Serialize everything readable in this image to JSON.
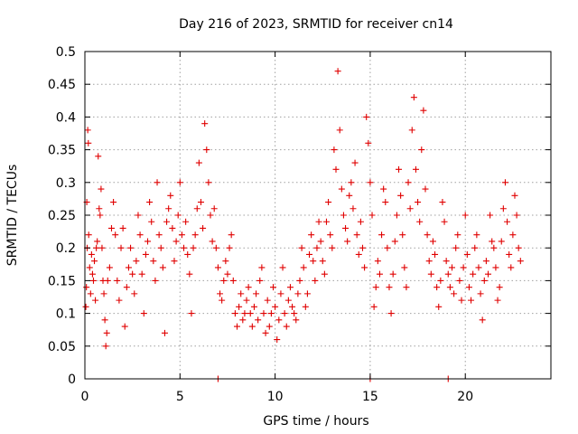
{
  "chart_data": {
    "type": "scatter",
    "title": "Day 216 of 2023, SRMTID for receiver cn14",
    "xlabel": "GPS time / hours",
    "ylabel": "SRMTID / TECUs",
    "xlim": [
      0,
      24.5
    ],
    "ylim": [
      0,
      0.5
    ],
    "xticks": [
      0,
      5,
      10,
      15,
      20
    ],
    "xtick_labels": [
      "0",
      "5",
      "10",
      "15",
      "20"
    ],
    "yticks": [
      0,
      0.05,
      0.1,
      0.15,
      0.2,
      0.25,
      0.3,
      0.35,
      0.4,
      0.45,
      0.5
    ],
    "ytick_labels": [
      "0",
      "0.05",
      "0.1",
      "0.15",
      "0.2",
      "0.25",
      "0.3",
      "0.35",
      "0.4",
      "0.45",
      "0.5"
    ],
    "grid": true,
    "marker": "+",
    "color": "#e00000",
    "series": [
      {
        "name": "SRMTID",
        "points": [
          [
            0.05,
            0.11
          ],
          [
            0.08,
            0.14
          ],
          [
            0.1,
            0.27
          ],
          [
            0.12,
            0.2
          ],
          [
            0.15,
            0.38
          ],
          [
            0.18,
            0.36
          ],
          [
            0.2,
            0.22
          ],
          [
            0.25,
            0.17
          ],
          [
            0.3,
            0.13
          ],
          [
            0.35,
            0.19
          ],
          [
            0.4,
            0.16
          ],
          [
            0.45,
            0.15
          ],
          [
            0.5,
            0.18
          ],
          [
            0.55,
            0.12
          ],
          [
            0.6,
            0.2
          ],
          [
            0.65,
            0.21
          ],
          [
            0.7,
            0.34
          ],
          [
            0.75,
            0.26
          ],
          [
            0.8,
            0.25
          ],
          [
            0.85,
            0.29
          ],
          [
            0.9,
            0.2
          ],
          [
            0.95,
            0.15
          ],
          [
            1.0,
            0.13
          ],
          [
            1.05,
            0.09
          ],
          [
            1.1,
            0.05
          ],
          [
            1.15,
            0.07
          ],
          [
            1.2,
            0.15
          ],
          [
            1.3,
            0.17
          ],
          [
            1.4,
            0.23
          ],
          [
            1.5,
            0.27
          ],
          [
            1.6,
            0.22
          ],
          [
            1.7,
            0.15
          ],
          [
            1.8,
            0.12
          ],
          [
            1.9,
            0.2
          ],
          [
            2.0,
            0.23
          ],
          [
            2.1,
            0.08
          ],
          [
            2.2,
            0.14
          ],
          [
            2.3,
            0.17
          ],
          [
            2.4,
            0.2
          ],
          [
            2.5,
            0.16
          ],
          [
            2.6,
            0.13
          ],
          [
            2.7,
            0.18
          ],
          [
            2.8,
            0.25
          ],
          [
            2.9,
            0.22
          ],
          [
            3.0,
            0.16
          ],
          [
            3.1,
            0.1
          ],
          [
            3.2,
            0.19
          ],
          [
            3.3,
            0.21
          ],
          [
            3.4,
            0.27
          ],
          [
            3.5,
            0.24
          ],
          [
            3.6,
            0.18
          ],
          [
            3.7,
            0.15
          ],
          [
            3.8,
            0.3
          ],
          [
            3.9,
            0.22
          ],
          [
            4.0,
            0.2
          ],
          [
            4.1,
            0.17
          ],
          [
            4.2,
            0.07
          ],
          [
            4.3,
            0.24
          ],
          [
            4.4,
            0.26
          ],
          [
            4.5,
            0.28
          ],
          [
            4.6,
            0.23
          ],
          [
            4.7,
            0.18
          ],
          [
            4.8,
            0.21
          ],
          [
            4.9,
            0.25
          ],
          [
            5.0,
            0.3
          ],
          [
            5.1,
            0.22
          ],
          [
            5.2,
            0.2
          ],
          [
            5.3,
            0.24
          ],
          [
            5.4,
            0.19
          ],
          [
            5.5,
            0.16
          ],
          [
            5.6,
            0.1
          ],
          [
            5.7,
            0.2
          ],
          [
            5.8,
            0.22
          ],
          [
            5.9,
            0.26
          ],
          [
            6.0,
            0.33
          ],
          [
            6.1,
            0.27
          ],
          [
            6.2,
            0.23
          ],
          [
            6.3,
            0.39
          ],
          [
            6.4,
            0.35
          ],
          [
            6.5,
            0.3
          ],
          [
            6.6,
            0.25
          ],
          [
            6.7,
            0.21
          ],
          [
            6.8,
            0.26
          ],
          [
            6.9,
            0.2
          ],
          [
            7.0,
            0.17
          ],
          [
            7.1,
            0.13
          ],
          [
            7.2,
            0.12
          ],
          [
            7.3,
            0.15
          ],
          [
            7.4,
            0.18
          ],
          [
            7.5,
            0.16
          ],
          [
            7.6,
            0.2
          ],
          [
            7.7,
            0.22
          ],
          [
            7.8,
            0.15
          ],
          [
            7.9,
            0.1
          ],
          [
            8.0,
            0.08
          ],
          [
            8.1,
            0.11
          ],
          [
            8.2,
            0.13
          ],
          [
            8.3,
            0.09
          ],
          [
            8.4,
            0.1
          ],
          [
            8.5,
            0.12
          ],
          [
            8.6,
            0.14
          ],
          [
            8.7,
            0.1
          ],
          [
            8.8,
            0.08
          ],
          [
            8.9,
            0.11
          ],
          [
            9.0,
            0.13
          ],
          [
            9.1,
            0.09
          ],
          [
            9.2,
            0.15
          ],
          [
            9.3,
            0.17
          ],
          [
            9.4,
            0.1
          ],
          [
            9.5,
            0.07
          ],
          [
            9.6,
            0.12
          ],
          [
            9.7,
            0.08
          ],
          [
            9.8,
            0.1
          ],
          [
            9.9,
            0.14
          ],
          [
            10.0,
            0.11
          ],
          [
            10.1,
            0.06
          ],
          [
            10.2,
            0.09
          ],
          [
            10.3,
            0.13
          ],
          [
            10.4,
            0.17
          ],
          [
            10.5,
            0.1
          ],
          [
            10.6,
            0.08
          ],
          [
            10.7,
            0.12
          ],
          [
            10.8,
            0.14
          ],
          [
            10.9,
            0.11
          ],
          [
            11.0,
            0.1
          ],
          [
            11.1,
            0.09
          ],
          [
            11.2,
            0.13
          ],
          [
            11.3,
            0.15
          ],
          [
            11.4,
            0.2
          ],
          [
            11.5,
            0.17
          ],
          [
            11.6,
            0.11
          ],
          [
            11.7,
            0.13
          ],
          [
            11.8,
            0.19
          ],
          [
            11.9,
            0.22
          ],
          [
            12.0,
            0.18
          ],
          [
            12.1,
            0.15
          ],
          [
            12.2,
            0.2
          ],
          [
            12.3,
            0.24
          ],
          [
            12.4,
            0.21
          ],
          [
            12.5,
            0.18
          ],
          [
            12.6,
            0.16
          ],
          [
            12.7,
            0.24
          ],
          [
            12.8,
            0.27
          ],
          [
            12.9,
            0.22
          ],
          [
            13.0,
            0.2
          ],
          [
            13.1,
            0.35
          ],
          [
            13.2,
            0.32
          ],
          [
            13.3,
            0.47
          ],
          [
            13.4,
            0.38
          ],
          [
            13.5,
            0.29
          ],
          [
            13.6,
            0.25
          ],
          [
            13.7,
            0.23
          ],
          [
            13.8,
            0.21
          ],
          [
            13.9,
            0.28
          ],
          [
            14.0,
            0.3
          ],
          [
            14.1,
            0.26
          ],
          [
            14.2,
            0.33
          ],
          [
            14.3,
            0.22
          ],
          [
            14.4,
            0.19
          ],
          [
            14.5,
            0.24
          ],
          [
            14.6,
            0.2
          ],
          [
            14.7,
            0.17
          ],
          [
            14.8,
            0.4
          ],
          [
            14.9,
            0.36
          ],
          [
            15.0,
            0.3
          ],
          [
            15.1,
            0.25
          ],
          [
            15.2,
            0.11
          ],
          [
            15.3,
            0.14
          ],
          [
            15.4,
            0.18
          ],
          [
            15.5,
            0.16
          ],
          [
            15.6,
            0.22
          ],
          [
            15.7,
            0.29
          ],
          [
            15.8,
            0.27
          ],
          [
            15.9,
            0.2
          ],
          [
            16.0,
            0.14
          ],
          [
            16.1,
            0.1
          ],
          [
            16.2,
            0.16
          ],
          [
            16.3,
            0.21
          ],
          [
            16.4,
            0.25
          ],
          [
            16.5,
            0.32
          ],
          [
            16.6,
            0.28
          ],
          [
            16.7,
            0.22
          ],
          [
            16.8,
            0.17
          ],
          [
            16.9,
            0.14
          ],
          [
            17.0,
            0.3
          ],
          [
            17.1,
            0.26
          ],
          [
            17.2,
            0.38
          ],
          [
            17.3,
            0.43
          ],
          [
            17.4,
            0.32
          ],
          [
            17.5,
            0.27
          ],
          [
            17.6,
            0.24
          ],
          [
            17.7,
            0.35
          ],
          [
            17.8,
            0.41
          ],
          [
            17.9,
            0.29
          ],
          [
            18.0,
            0.22
          ],
          [
            18.1,
            0.18
          ],
          [
            18.2,
            0.16
          ],
          [
            18.3,
            0.21
          ],
          [
            18.4,
            0.19
          ],
          [
            18.5,
            0.14
          ],
          [
            18.6,
            0.11
          ],
          [
            18.7,
            0.15
          ],
          [
            18.8,
            0.27
          ],
          [
            18.9,
            0.24
          ],
          [
            19.0,
            0.18
          ],
          [
            19.1,
            0.16
          ],
          [
            19.2,
            0.14
          ],
          [
            19.3,
            0.17
          ],
          [
            19.4,
            0.13
          ],
          [
            19.5,
            0.2
          ],
          [
            19.6,
            0.22
          ],
          [
            19.7,
            0.15
          ],
          [
            19.8,
            0.12
          ],
          [
            19.9,
            0.17
          ],
          [
            20.0,
            0.25
          ],
          [
            20.1,
            0.19
          ],
          [
            20.2,
            0.14
          ],
          [
            20.3,
            0.12
          ],
          [
            20.4,
            0.16
          ],
          [
            20.5,
            0.2
          ],
          [
            20.6,
            0.22
          ],
          [
            20.7,
            0.17
          ],
          [
            20.8,
            0.13
          ],
          [
            20.9,
            0.09
          ],
          [
            21.0,
            0.15
          ],
          [
            21.1,
            0.18
          ],
          [
            21.2,
            0.16
          ],
          [
            21.3,
            0.25
          ],
          [
            21.4,
            0.21
          ],
          [
            21.5,
            0.2
          ],
          [
            21.6,
            0.17
          ],
          [
            21.7,
            0.12
          ],
          [
            21.8,
            0.14
          ],
          [
            21.9,
            0.21
          ],
          [
            22.0,
            0.26
          ],
          [
            22.1,
            0.3
          ],
          [
            22.2,
            0.24
          ],
          [
            22.3,
            0.19
          ],
          [
            22.4,
            0.17
          ],
          [
            22.5,
            0.22
          ],
          [
            22.6,
            0.28
          ],
          [
            22.7,
            0.25
          ],
          [
            22.8,
            0.2
          ],
          [
            22.9,
            0.18
          ],
          [
            7.0,
            0.0
          ],
          [
            15.0,
            0.0
          ],
          [
            19.1,
            0.0
          ]
        ]
      }
    ]
  }
}
